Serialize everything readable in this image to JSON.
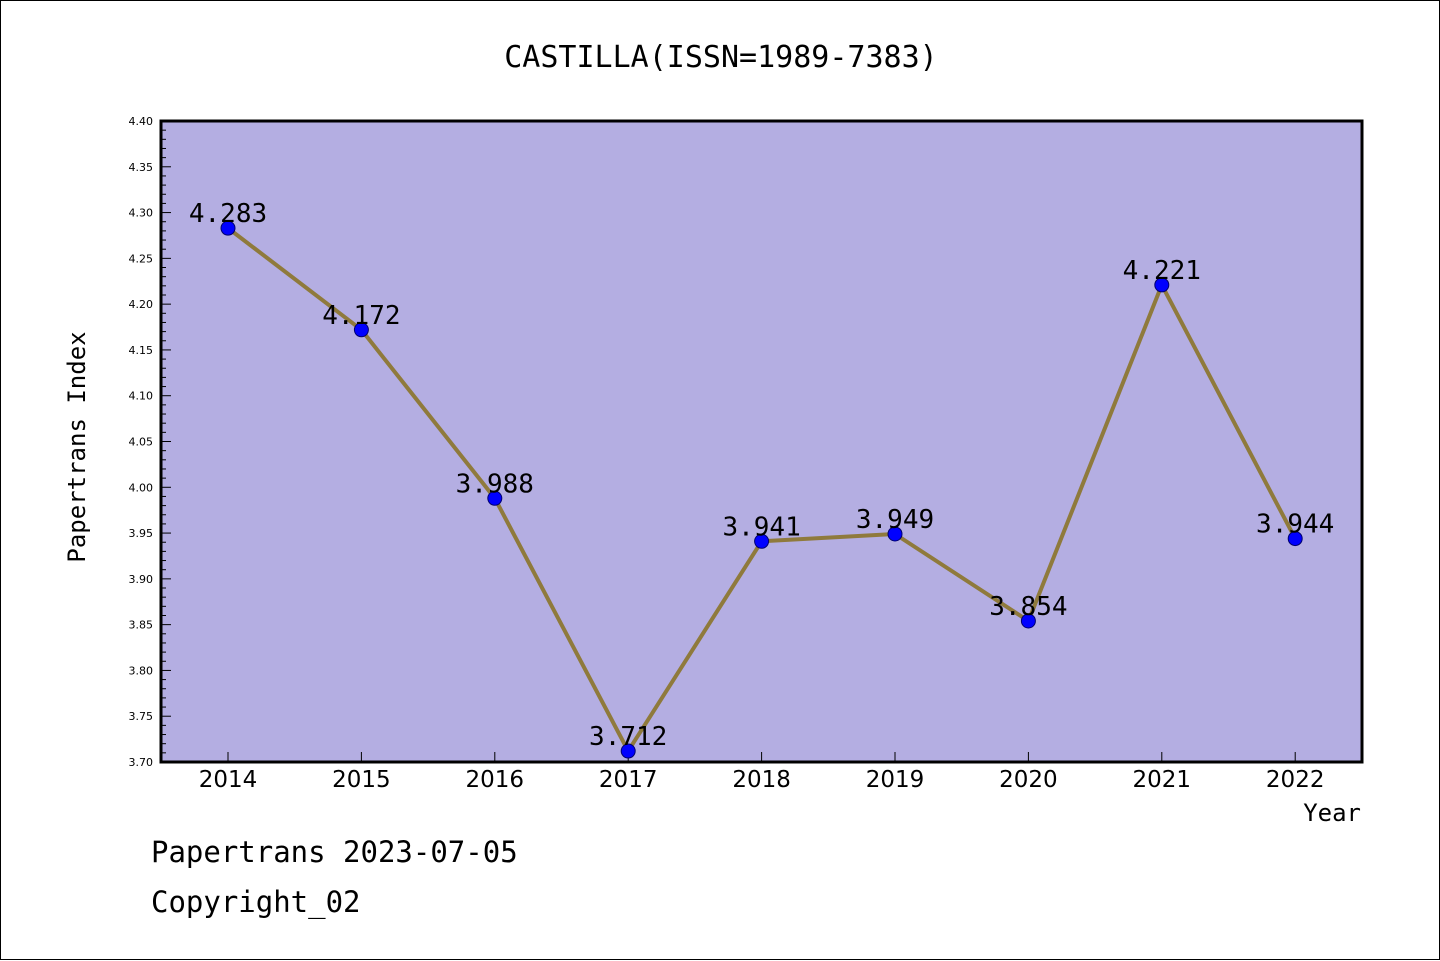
{
  "chart_data": {
    "type": "line",
    "title": "CASTILLA(ISSN=1989-7383)",
    "xlabel": "Year",
    "ylabel": "Papertrans Index",
    "categories": [
      "2014",
      "2015",
      "2016",
      "2017",
      "2018",
      "2019",
      "2020",
      "2021",
      "2022"
    ],
    "values": [
      4.283,
      4.172,
      3.988,
      3.712,
      3.941,
      3.949,
      3.854,
      4.221,
      3.944
    ],
    "data_labels": [
      "4.283",
      "4.172",
      "3.988",
      "3.712",
      "3.941",
      "3.949",
      "3.854",
      "4.221",
      "3.944"
    ],
    "ylim": [
      3.7,
      4.4
    ],
    "yticks": [
      "3.70",
      "3.75",
      "3.80",
      "3.85",
      "3.90",
      "3.95",
      "4.00",
      "4.05",
      "4.10",
      "4.15",
      "4.20",
      "4.25",
      "4.30",
      "4.35",
      "4.40"
    ],
    "grid": false,
    "legend": "none",
    "colors": {
      "plot_background": "#b4aee2",
      "line": "#8f7a3c",
      "marker": "#0000ff"
    }
  },
  "footer": {
    "line1": "Papertrans 2023-07-05",
    "line2": "Copyright_02"
  }
}
